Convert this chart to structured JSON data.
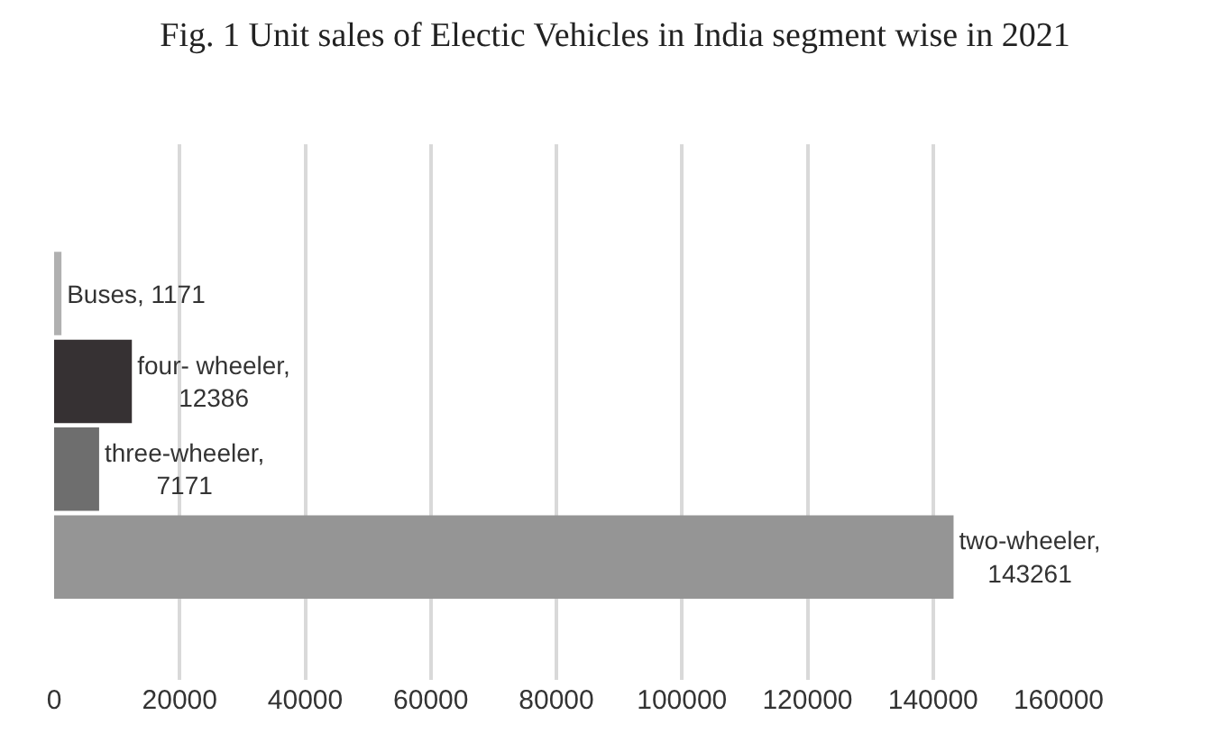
{
  "chart_data": {
    "type": "bar",
    "orientation": "horizontal",
    "title": "Fig. 1 Unit sales of Electic Vehicles in India segment wise in 2021",
    "categories": [
      null,
      null,
      null,
      null
    ],
    "values": [
      1171,
      12386,
      7171,
      143261
    ],
    "colors": [
      "#b0b0b0",
      "#363133",
      "#6e6e6e",
      "#959595"
    ],
    "value_labels": [
      "Buses, 1171",
      "four- wheeler,\n12386",
      "three-wheeler,\n7171",
      "two-wheeler,\n143261"
    ],
    "xlim": [
      0,
      160000
    ],
    "xticks": [
      0,
      20000,
      40000,
      60000,
      80000,
      100000,
      120000,
      140000,
      160000
    ],
    "grid": "x",
    "tick_labels": "x",
    "legend": false
  }
}
